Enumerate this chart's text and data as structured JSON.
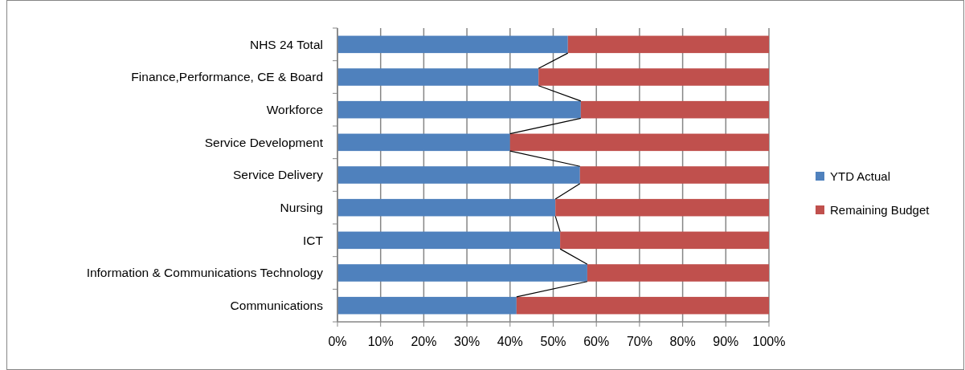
{
  "chart_data": {
    "type": "bar",
    "orientation": "horizontal",
    "stacked": true,
    "categories": [
      "NHS 24 Total",
      "Finance,Performance, CE & Board",
      "Workforce",
      "Service Development",
      "Service Delivery",
      "Nursing",
      "ICT",
      "Information & Communications  Technology",
      "Communications"
    ],
    "series": [
      {
        "name": "YTD Actual",
        "color": "#4f81bd",
        "values": [
          53.4,
          46.6,
          56.4,
          40.0,
          56.2,
          50.5,
          51.6,
          57.9,
          41.5
        ]
      },
      {
        "name": "Remaining Budget",
        "color": "#c0504d",
        "values": [
          46.6,
          53.4,
          43.6,
          60.0,
          43.8,
          49.5,
          48.4,
          42.1,
          58.5
        ]
      }
    ],
    "xlim": [
      0,
      100
    ],
    "xticks": [
      {
        "value": 0,
        "label": "0%"
      },
      {
        "value": 10,
        "label": "10%"
      },
      {
        "value": 20,
        "label": "20%"
      },
      {
        "value": 30,
        "label": "30%"
      },
      {
        "value": 40,
        "label": "40%"
      },
      {
        "value": 50,
        "label": "50%"
      },
      {
        "value": 60,
        "label": "60%"
      },
      {
        "value": 70,
        "label": "70%"
      },
      {
        "value": 80,
        "label": "80%"
      },
      {
        "value": 90,
        "label": "90%"
      },
      {
        "value": 100,
        "label": "100%"
      }
    ],
    "grid": "x",
    "legend": "right"
  }
}
